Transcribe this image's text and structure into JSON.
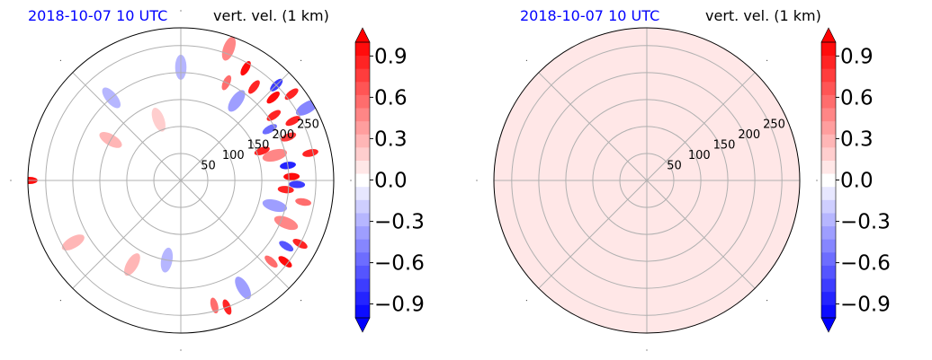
{
  "chart_data": [
    {
      "type": "heatmap",
      "projection": "polar",
      "title_left": "2018-10-07 10 UTC",
      "title_right": "vert. vel. (1 km)",
      "radial_ticks": [
        50,
        100,
        150,
        200,
        250
      ],
      "radial_max": 283,
      "angular_gridlines_deg": [
        0,
        45,
        90,
        135,
        180,
        225,
        270,
        315
      ],
      "grid": true,
      "colorbar": {
        "cmap": "bwr",
        "vmin": -1.0,
        "vmax": 1.0,
        "levels": 21,
        "extend": "both",
        "ticks": [
          -0.9,
          -0.6,
          -0.3,
          0.0,
          0.3,
          0.6,
          0.9
        ],
        "tick_labels": [
          "−0.9",
          "−0.6",
          "−0.3",
          "0.0",
          "0.3",
          "0.6",
          "0.9"
        ]
      },
      "field_description": "strong up/down-draft pairs concentrated in the eastern (right) half, near ranges 150-280; weak noise elsewhere",
      "cells": [
        {
          "az": 30,
          "r": 240,
          "v": 0.95
        },
        {
          "az": 38,
          "r": 220,
          "v": 0.9
        },
        {
          "az": 45,
          "r": 250,
          "v": -0.8
        },
        {
          "az": 48,
          "r": 230,
          "v": 1.0
        },
        {
          "az": 55,
          "r": 210,
          "v": 0.85
        },
        {
          "az": 52,
          "r": 260,
          "v": 0.9
        },
        {
          "az": 60,
          "r": 190,
          "v": -0.6
        },
        {
          "az": 62,
          "r": 235,
          "v": 0.9
        },
        {
          "az": 68,
          "r": 215,
          "v": 0.75
        },
        {
          "az": 70,
          "r": 160,
          "v": 0.9
        },
        {
          "az": 75,
          "r": 180,
          "v": 0.5
        },
        {
          "az": 78,
          "r": 245,
          "v": 0.9
        },
        {
          "az": 82,
          "r": 200,
          "v": -0.9
        },
        {
          "az": 88,
          "r": 205,
          "v": 0.95
        },
        {
          "az": 92,
          "r": 215,
          "v": -0.8
        },
        {
          "az": 95,
          "r": 195,
          "v": 0.9
        },
        {
          "az": 100,
          "r": 230,
          "v": 0.6
        },
        {
          "az": 105,
          "r": 180,
          "v": -0.4
        },
        {
          "az": 112,
          "r": 210,
          "v": 0.5
        },
        {
          "az": 118,
          "r": 250,
          "v": 0.9
        },
        {
          "az": 122,
          "r": 230,
          "v": -0.7
        },
        {
          "az": 128,
          "r": 245,
          "v": 0.95
        },
        {
          "az": 132,
          "r": 225,
          "v": 0.6
        },
        {
          "az": 60,
          "r": 270,
          "v": -0.5
        },
        {
          "az": 25,
          "r": 200,
          "v": 0.6
        },
        {
          "az": 35,
          "r": 180,
          "v": -0.4
        },
        {
          "az": 20,
          "r": 260,
          "v": 0.5
        },
        {
          "az": 150,
          "r": 230,
          "v": -0.4
        },
        {
          "az": 160,
          "r": 250,
          "v": 0.9
        },
        {
          "az": 165,
          "r": 240,
          "v": 0.6
        },
        {
          "az": 270,
          "r": 280,
          "v": 0.95
        },
        {
          "az": 210,
          "r": 180,
          "v": 0.3
        },
        {
          "az": 300,
          "r": 150,
          "v": 0.25
        },
        {
          "az": 320,
          "r": 200,
          "v": -0.25
        },
        {
          "az": 0,
          "r": 210,
          "v": -0.3
        },
        {
          "az": 240,
          "r": 230,
          "v": 0.3
        },
        {
          "az": 190,
          "r": 150,
          "v": -0.25
        },
        {
          "az": 340,
          "r": 120,
          "v": 0.2
        }
      ]
    },
    {
      "type": "heatmap",
      "projection": "polar",
      "title_left": "2018-10-07 10 UTC",
      "title_right": "vert. vel. (1 km)",
      "radial_ticks": [
        50,
        100,
        150,
        200,
        250
      ],
      "radial_max": 283,
      "angular_gridlines_deg": [
        0,
        45,
        90,
        135,
        180,
        225,
        270,
        315
      ],
      "grid": true,
      "colorbar": {
        "cmap": "bwr",
        "vmin": -1.0,
        "vmax": 1.0,
        "levels": 21,
        "extend": "both",
        "ticks": [
          -0.9,
          -0.6,
          -0.3,
          0.0,
          0.3,
          0.6,
          0.9
        ],
        "tick_labels": [
          "−0.9",
          "−0.6",
          "−0.3",
          "0.0",
          "0.3",
          "0.6",
          "0.9"
        ]
      },
      "field_description": "uniform field, approximately 0.05 everywhere",
      "uniform_value": 0.05,
      "cells": []
    }
  ]
}
